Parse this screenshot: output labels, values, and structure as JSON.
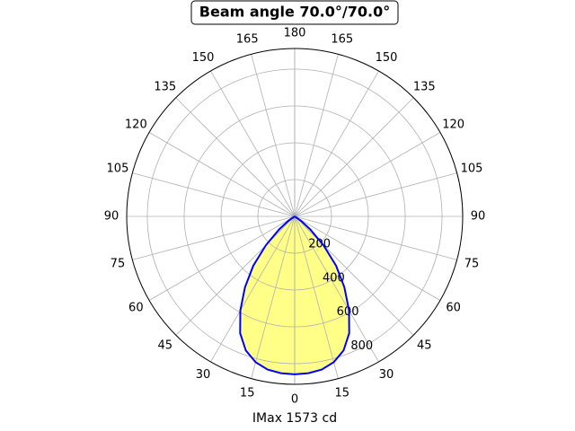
{
  "chart_data": {
    "type": "polar",
    "title": "Beam angle 70.0°/70.0°",
    "xlabel": "IMax 1573 cd",
    "thetaticks": [
      0,
      15,
      30,
      45,
      60,
      75,
      90,
      105,
      120,
      135,
      150,
      165,
      180
    ],
    "rlim": [
      0,
      912
    ],
    "rticks": [
      200,
      400,
      600,
      800
    ],
    "grid": true,
    "series": [
      {
        "color": "#0000ff",
        "fill": "#ffff88",
        "x": [
          0,
          5,
          10,
          15,
          20,
          25,
          30,
          35,
          40,
          45,
          50,
          55,
          60,
          65,
          70,
          75,
          80,
          85,
          90
        ],
        "values": [
          858,
          855,
          845,
          820,
          775,
          700,
          590,
          470,
          350,
          220,
          110,
          40,
          0,
          0,
          0,
          0,
          0,
          0,
          0
        ]
      }
    ]
  }
}
